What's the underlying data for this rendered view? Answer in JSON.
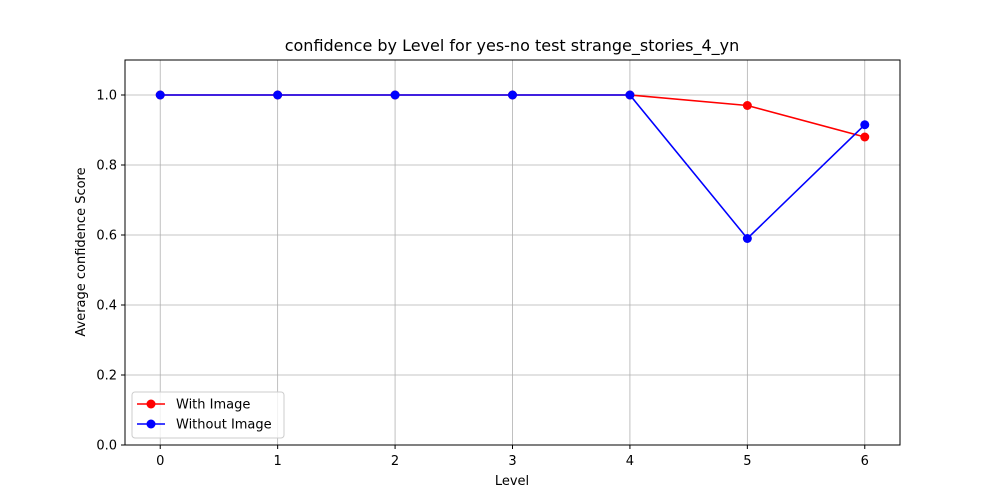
{
  "chart_data": {
    "type": "line",
    "title": "confidence by Level for yes-no test strange_stories_4_yn",
    "xlabel": "Level",
    "ylabel": "Average confidence Score",
    "x": [
      0,
      1,
      2,
      3,
      4,
      5,
      6
    ],
    "xlim": [
      -0.3,
      6.3
    ],
    "ylim": [
      0.0,
      1.1
    ],
    "xticks": [
      "0",
      "1",
      "2",
      "3",
      "4",
      "5",
      "6"
    ],
    "yticks": [
      "0.0",
      "0.2",
      "0.4",
      "0.6",
      "0.8",
      "1.0"
    ],
    "grid": true,
    "legend_position": "lower-left",
    "series": [
      {
        "name": "With Image",
        "color": "#ff0000",
        "values": [
          1.0,
          1.0,
          1.0,
          1.0,
          1.0,
          0.97,
          0.88
        ]
      },
      {
        "name": "Without Image",
        "color": "#0000ff",
        "values": [
          1.0,
          1.0,
          1.0,
          1.0,
          1.0,
          0.59,
          0.915
        ]
      }
    ]
  }
}
